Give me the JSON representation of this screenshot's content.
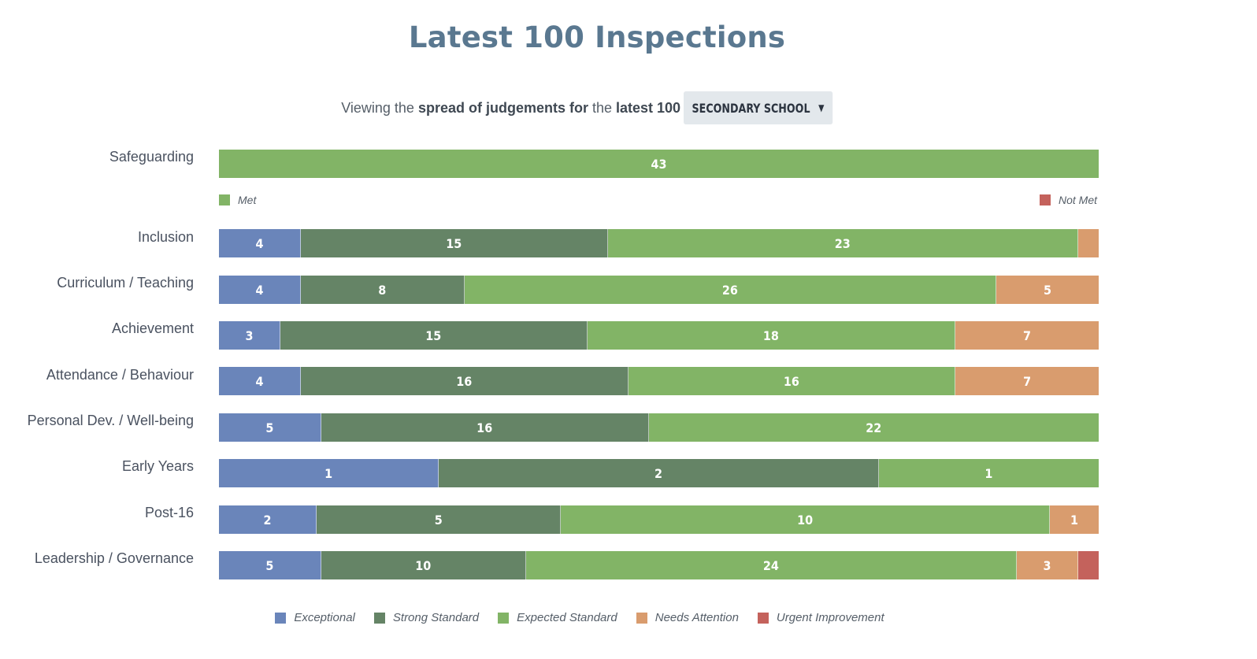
{
  "title": "Latest 100 Inspections",
  "subtitle": {
    "part1": "Viewing the ",
    "part2": "spread of judgements for",
    "part3": " the ",
    "part4": "latest 100",
    "selected": "SECONDARY SCHOOL",
    "arrow": "▼"
  },
  "colors": {
    "Exceptional": "#6a85ba",
    "Strong Standard": "#658466",
    "Expected Standard": "#82b466",
    "Needs Attention": "#d99c6e",
    "Urgent Improvement": "#c4625c",
    "Met": "#82b466",
    "Not Met": "#c4625c"
  },
  "safeguarding_legend": {
    "met": "Met",
    "not_met": "Not Met"
  },
  "chart_data": {
    "type": "bar",
    "orientation": "horizontal",
    "stacked": true,
    "normalized": true,
    "categories": [
      "Safeguarding",
      "Inclusion",
      "Curriculum / Teaching",
      "Achievement",
      "Attendance / Behaviour",
      "Personal Dev. / Well-being",
      "Early Years",
      "Post-16",
      "Leadership / Governance"
    ],
    "safeguarding": {
      "series": [
        {
          "name": "Met",
          "values": [
            43
          ]
        },
        {
          "name": "Not Met",
          "values": [
            0
          ]
        }
      ]
    },
    "series": [
      {
        "name": "Exceptional",
        "values": [
          null,
          4,
          4,
          3,
          4,
          5,
          1,
          2,
          5
        ]
      },
      {
        "name": "Strong Standard",
        "values": [
          null,
          15,
          8,
          15,
          16,
          16,
          2,
          5,
          10
        ]
      },
      {
        "name": "Expected Standard",
        "values": [
          null,
          23,
          26,
          18,
          16,
          22,
          1,
          10,
          24
        ]
      },
      {
        "name": "Needs Attention",
        "values": [
          null,
          1,
          5,
          7,
          7,
          0,
          0,
          1,
          3
        ]
      },
      {
        "name": "Urgent Improvement",
        "values": [
          null,
          0,
          0,
          0,
          0,
          0,
          0,
          0,
          1
        ]
      }
    ],
    "legend_position": "bottom"
  }
}
